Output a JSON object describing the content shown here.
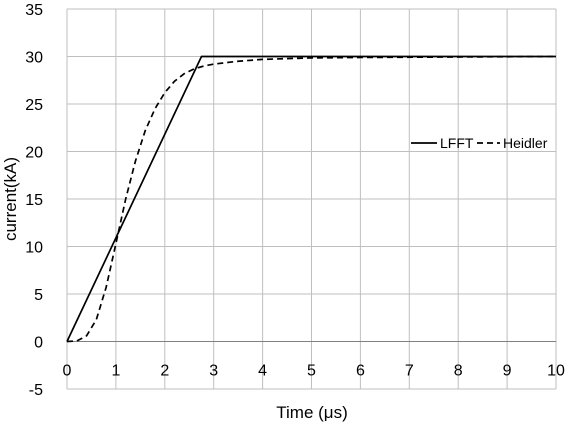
{
  "chart_data": {
    "type": "line",
    "title": "",
    "xlabel": "Time (μs)",
    "ylabel": "current(kA)",
    "xlim": [
      0,
      10
    ],
    "ylim": [
      -5,
      35
    ],
    "xticks": [
      "0",
      "1",
      "2",
      "3",
      "4",
      "5",
      "6",
      "7",
      "8",
      "9",
      "10"
    ],
    "yticks": [
      "-5",
      "0",
      "5",
      "10",
      "15",
      "20",
      "25",
      "30",
      "35"
    ],
    "grid": true,
    "legend": "right",
    "series": [
      {
        "name": "LFFT",
        "style": "solid",
        "color": "#000000",
        "x": [
          0,
          2.75,
          2.8,
          4,
          6,
          8,
          10
        ],
        "y": [
          0,
          30,
          30,
          30,
          30,
          30,
          30
        ]
      },
      {
        "name": "Heidler",
        "style": "dashed",
        "color": "#000000",
        "x": [
          0,
          0.2,
          0.4,
          0.6,
          0.8,
          1.0,
          1.2,
          1.4,
          1.6,
          1.8,
          2.0,
          2.2,
          2.4,
          2.6,
          2.8,
          3.0,
          3.5,
          4.0,
          5.0,
          6.0,
          8.0,
          10.0
        ],
        "y": [
          0,
          0.05,
          0.6,
          2.3,
          5.7,
          10.3,
          15.0,
          19.0,
          22.2,
          24.5,
          26.2,
          27.4,
          28.2,
          28.7,
          29.0,
          29.2,
          29.5,
          29.7,
          29.85,
          29.9,
          29.95,
          30.0
        ]
      }
    ]
  }
}
